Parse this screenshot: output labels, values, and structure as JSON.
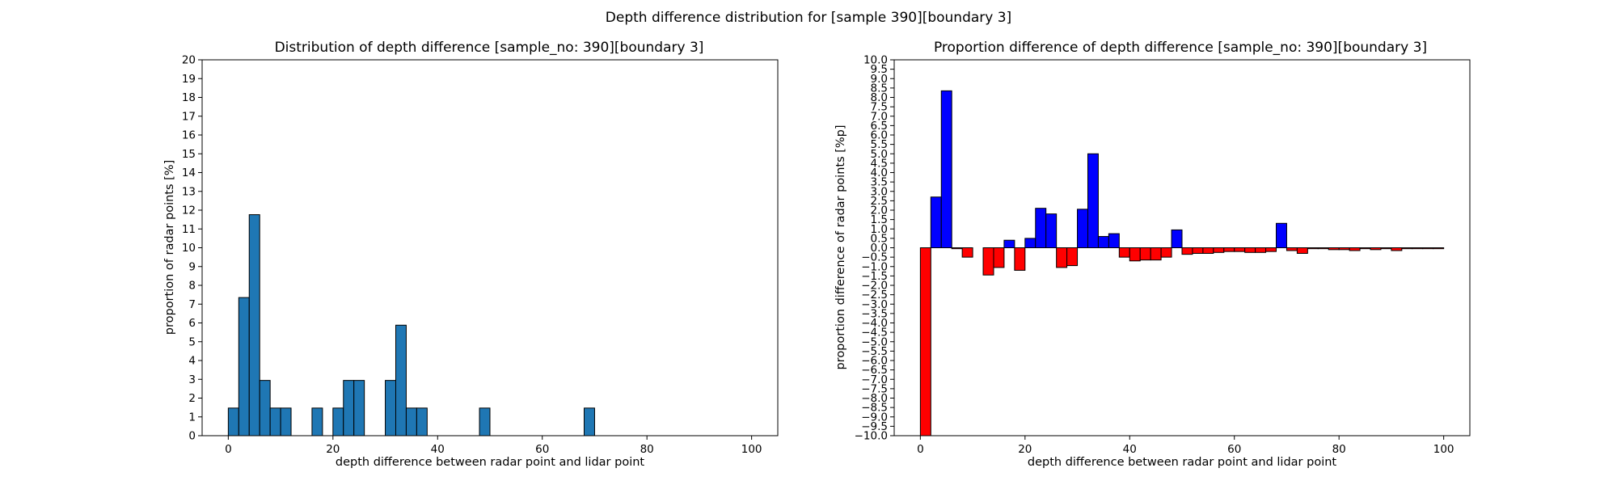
{
  "figure": {
    "suptitle": "Depth difference distribution for [sample 390][boundary 3]"
  },
  "chart_data": [
    {
      "type": "bar",
      "title": "Distribution of depth difference [sample_no: 390][boundary 3]",
      "xlabel": "depth difference between radar point and lidar point",
      "ylabel": "proportion of radar points [%]",
      "xlim": [
        -5,
        105
      ],
      "ylim": [
        0,
        20
      ],
      "xticks": [
        0,
        20,
        40,
        60,
        80,
        100
      ],
      "yticks": [
        0,
        1,
        2,
        3,
        4,
        5,
        6,
        7,
        8,
        9,
        10,
        11,
        12,
        13,
        14,
        15,
        16,
        17,
        18,
        19,
        20
      ],
      "bin_width": 2,
      "bin_starts": [
        0,
        2,
        4,
        6,
        8,
        10,
        12,
        14,
        16,
        18,
        20,
        22,
        24,
        26,
        28,
        30,
        32,
        34,
        36,
        38,
        40,
        42,
        44,
        46,
        48,
        50,
        52,
        54,
        56,
        58,
        60,
        62,
        64,
        66,
        68,
        70,
        72,
        74,
        76,
        78,
        80,
        82,
        84,
        86,
        88,
        90,
        92,
        94,
        96,
        98
      ],
      "values": [
        1.47,
        7.35,
        11.76,
        2.94,
        1.47,
        1.47,
        0,
        0,
        1.47,
        0,
        1.47,
        2.94,
        2.94,
        0,
        0,
        2.94,
        5.88,
        1.47,
        1.47,
        0,
        0,
        0,
        0,
        0,
        1.47,
        0,
        0,
        0,
        0,
        0,
        0,
        0,
        0,
        0,
        1.47,
        0,
        0,
        0,
        0,
        0,
        0,
        0,
        0,
        0,
        0,
        0,
        0,
        0,
        0,
        0
      ],
      "colors": {
        "bar": "#1f77b4",
        "edge": "#000000"
      },
      "grid": false
    },
    {
      "type": "bar",
      "title": "Proportion difference of depth difference [sample_no: 390][boundary 3]",
      "xlabel": "depth difference between radar point and lidar point",
      "ylabel": "proportion difference of radar points [%p]",
      "xlim": [
        -5,
        105
      ],
      "ylim": [
        -10,
        10
      ],
      "xticks": [
        0,
        20,
        40,
        60,
        80,
        100
      ],
      "yticks": [
        -10.0,
        -9.5,
        -9.0,
        -8.5,
        -8.0,
        -7.5,
        -7.0,
        -6.5,
        -6.0,
        -5.5,
        -5.0,
        -4.5,
        -4.0,
        -3.5,
        -3.0,
        -2.5,
        -2.0,
        -1.5,
        -1.0,
        -0.5,
        0.0,
        0.5,
        1.0,
        1.5,
        2.0,
        2.5,
        3.0,
        3.5,
        4.0,
        4.5,
        5.0,
        5.5,
        6.0,
        6.5,
        7.0,
        7.5,
        8.0,
        8.5,
        9.0,
        9.5,
        10.0
      ],
      "bin_width": 2,
      "bin_starts": [
        0,
        2,
        4,
        6,
        8,
        10,
        12,
        14,
        16,
        18,
        20,
        22,
        24,
        26,
        28,
        30,
        32,
        34,
        36,
        38,
        40,
        42,
        44,
        46,
        48,
        50,
        52,
        54,
        56,
        58,
        60,
        62,
        64,
        66,
        68,
        70,
        72,
        74,
        76,
        78,
        80,
        82,
        84,
        86,
        88,
        90,
        92,
        94,
        96,
        98
      ],
      "values": [
        -10.0,
        2.7,
        8.35,
        -0.05,
        -0.5,
        0.0,
        -1.45,
        -1.05,
        0.4,
        -1.2,
        0.5,
        2.1,
        1.8,
        -1.05,
        -0.95,
        2.05,
        5.0,
        0.6,
        0.75,
        -0.5,
        -0.7,
        -0.65,
        -0.65,
        -0.5,
        0.95,
        -0.35,
        -0.3,
        -0.3,
        -0.25,
        -0.2,
        -0.2,
        -0.25,
        -0.25,
        -0.2,
        1.3,
        -0.15,
        -0.3,
        -0.05,
        -0.05,
        -0.1,
        -0.1,
        -0.15,
        -0.05,
        -0.1,
        -0.05,
        -0.15,
        -0.05,
        -0.05,
        -0.05,
        -0.05
      ],
      "colors": {
        "positive": "#0000ff",
        "negative": "#ff0000",
        "edge": "#000000"
      },
      "grid": false
    }
  ]
}
